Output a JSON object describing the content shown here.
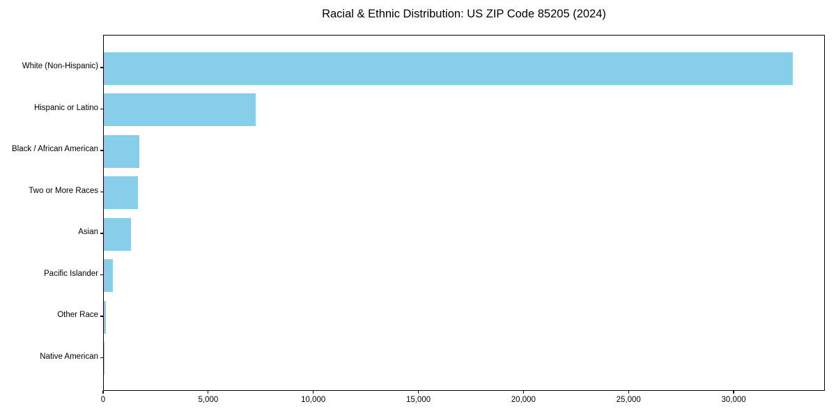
{
  "chart_data": {
    "type": "bar",
    "orientation": "horizontal",
    "title": "Racial & Ethnic Distribution: US ZIP Code 85205 (2024)",
    "categories": [
      "White (Non-Hispanic)",
      "Hispanic or Latino",
      "Black / African American",
      "Two or More Races",
      "Asian",
      "Pacific Islander",
      "Other Race",
      "Native American"
    ],
    "values": [
      32770,
      7220,
      1700,
      1635,
      1285,
      430,
      90,
      15
    ],
    "xlabel": "",
    "ylabel": "",
    "xlim": [
      0,
      34340
    ],
    "xticks": [
      0,
      5000,
      10000,
      15000,
      20000,
      25000,
      30000
    ],
    "xtick_labels": [
      "0",
      "5,000",
      "10,000",
      "15,000",
      "20,000",
      "25,000",
      "30,000"
    ],
    "bar_color": "#87CEEB",
    "grid": false,
    "legend": null,
    "background_color": "#ffffff",
    "axis_color": "#000000"
  }
}
